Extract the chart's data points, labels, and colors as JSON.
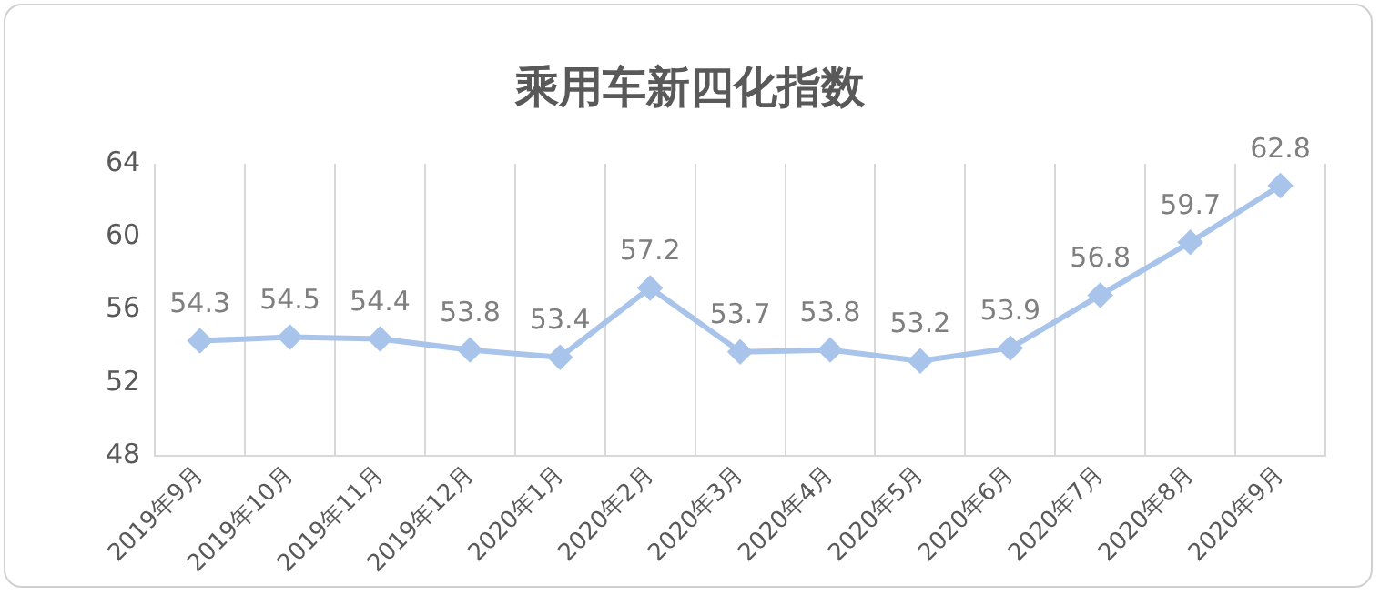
{
  "chart_data": {
    "type": "line",
    "title": "乘用车新四化指数",
    "categories": [
      "2019年9月",
      "2019年10月",
      "2019年11月",
      "2019年12月",
      "2020年1月",
      "2020年2月",
      "2020年3月",
      "2020年4月",
      "2020年5月",
      "2020年6月",
      "2020年7月",
      "2020年8月",
      "2020年9月"
    ],
    "values": [
      54.3,
      54.5,
      54.4,
      53.8,
      53.4,
      57.2,
      53.7,
      53.8,
      53.2,
      53.9,
      56.8,
      59.7,
      62.8
    ],
    "color": "#a9c4eb",
    "ylim": [
      48,
      64
    ],
    "yticks": [
      48,
      52,
      56,
      60,
      64
    ],
    "grid": "x",
    "marker": "diamond",
    "line_style": "solid",
    "data_labels": true
  }
}
